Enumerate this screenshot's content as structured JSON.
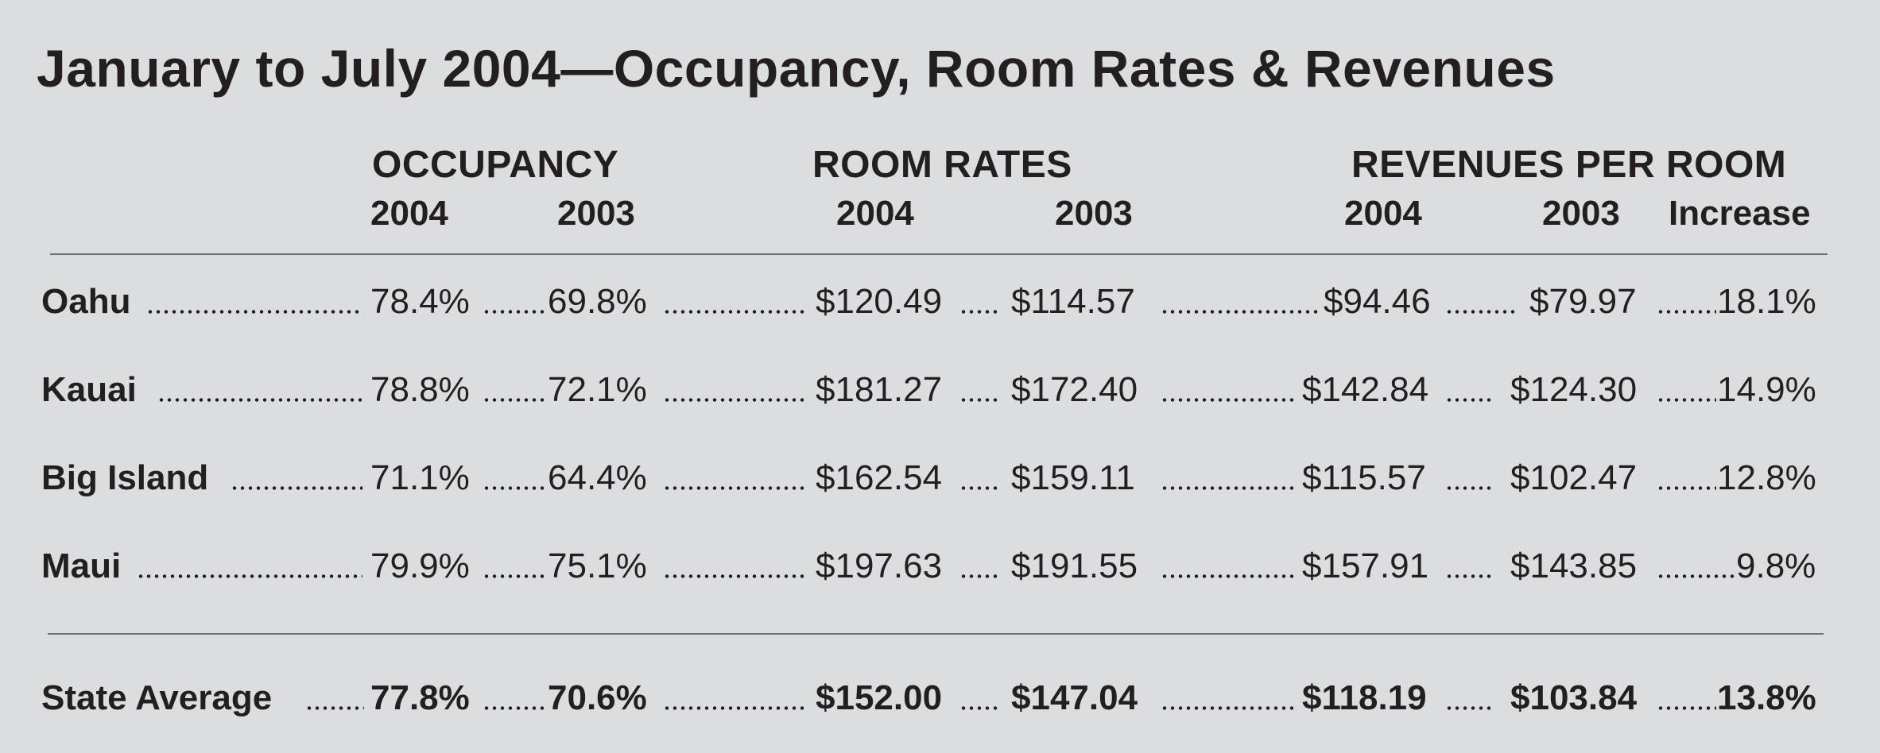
{
  "title": "January to July 2004—Occupancy, Room Rates & Revenues",
  "groups": {
    "occupancy": "OCCUPANCY",
    "room_rates": "ROOM RATES",
    "revenues": "REVENUES PER ROOM"
  },
  "columns": {
    "occ_2004": "2004",
    "occ_2003": "2003",
    "rate_2004": "2004",
    "rate_2003": "2003",
    "rev_2004": "2004",
    "rev_2003": "2003",
    "rev_increase": "Increase"
  },
  "rows": [
    {
      "label": "Oahu",
      "occ_2004": "78.4%",
      "occ_2003": "69.8%",
      "rate_2004": "$120.49",
      "rate_2003": "$114.57",
      "rev_2004": "$94.46",
      "rev_2003": "$79.97",
      "increase": "18.1%"
    },
    {
      "label": "Kauai",
      "occ_2004": "78.8%",
      "occ_2003": "72.1%",
      "rate_2004": "$181.27",
      "rate_2003": "$172.40",
      "rev_2004": "$142.84",
      "rev_2003": "$124.30",
      "increase": "14.9%"
    },
    {
      "label": "Big Island",
      "occ_2004": "71.1%",
      "occ_2003": "64.4%",
      "rate_2004": "$162.54",
      "rate_2003": "$159.11",
      "rev_2004": "$115.57",
      "rev_2003": "$102.47",
      "increase": "12.8%"
    },
    {
      "label": "Maui",
      "occ_2004": "79.9%",
      "occ_2003": "75.1%",
      "rate_2004": "$197.63",
      "rate_2003": "$191.55",
      "rev_2004": "$157.91",
      "rev_2003": "$143.85",
      "increase": "9.8%"
    }
  ],
  "total": {
    "label": "State Average",
    "occ_2004": "77.8%",
    "occ_2003": "70.6%",
    "rate_2004": "$152.00",
    "rate_2003": "$147.04",
    "rev_2004": "$118.19",
    "rev_2003": "$103.84",
    "increase": "13.8%"
  }
}
